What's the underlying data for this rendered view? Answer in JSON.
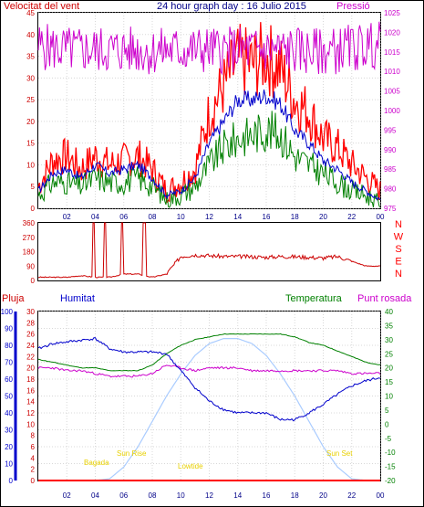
{
  "colors": {
    "red": "#ff0000",
    "darkred": "#cc0000",
    "blue": "#0000cc",
    "green": "#008000",
    "magenta": "#cc00cc",
    "grid": "#d8d8d8",
    "sun": "#aaccff",
    "yellow": "#e8d000"
  },
  "header": {
    "left": "Velocitat del vent",
    "title": "24 hour graph day : 16 Julio 2015",
    "right": "Pressió"
  },
  "legend": {
    "rain": "Pluja",
    "humidity": "Humitat",
    "temperature": "Temperatura",
    "dewpoint": "Punt rosada"
  },
  "time_labels": [
    "02",
    "04",
    "06",
    "08",
    "10",
    "12",
    "14",
    "16",
    "18",
    "20",
    "22",
    "00"
  ],
  "chart_data": [
    {
      "type": "line",
      "title": "Velocitat del vent / Pressió",
      "x_hours": [
        0,
        1,
        2,
        3,
        4,
        5,
        6,
        7,
        8,
        9,
        10,
        11,
        12,
        13,
        14,
        15,
        16,
        17,
        18,
        19,
        20,
        21,
        22,
        23,
        24
      ],
      "ylim_left": [
        0,
        45
      ],
      "left_ticks": [
        "0",
        "5",
        "10",
        "15",
        "20",
        "25",
        "30",
        "35",
        "40",
        "45"
      ],
      "ylim_right": [
        975,
        1025
      ],
      "right_ticks": [
        "975",
        "980",
        "985",
        "990",
        "995",
        "1000",
        "1005",
        "1010",
        "1015",
        "1020",
        "1025"
      ],
      "series": [
        {
          "name": "gust",
          "axis": "left",
          "values": [
            5,
            11,
            12,
            9,
            12,
            10,
            11,
            12,
            9,
            4,
            6,
            9,
            22,
            28,
            34,
            33,
            35,
            32,
            25,
            22,
            16,
            14,
            10,
            7,
            4
          ]
        },
        {
          "name": "speed",
          "axis": "left",
          "values": [
            4,
            8,
            9,
            7,
            10,
            8,
            9,
            10,
            7,
            3,
            4,
            7,
            15,
            20,
            25,
            25,
            26,
            24,
            18,
            15,
            11,
            9,
            6,
            4,
            2
          ]
        },
        {
          "name": "green",
          "axis": "left",
          "values": [
            3,
            6,
            6,
            5,
            7,
            6,
            6,
            7,
            5,
            2,
            3,
            5,
            10,
            14,
            16,
            17,
            18,
            17,
            12,
            10,
            8,
            6,
            4,
            3,
            1
          ]
        },
        {
          "name": "pressure",
          "axis": "right",
          "values": [
            1016.5,
            1016,
            1015.5,
            1015.5,
            1015.5,
            1015.5,
            1015.5,
            1015.5,
            1015,
            1015.5,
            1015.5,
            1015.5,
            1015.5,
            1015.5,
            1015.5,
            1015.5,
            1015.5,
            1015.5,
            1015.5,
            1015,
            1015,
            1015.5,
            1016,
            1016.5,
            1016.8
          ]
        }
      ]
    },
    {
      "type": "line",
      "title": "Direcció del vent",
      "ylim": [
        0,
        360
      ],
      "y_ticks": [
        "0",
        "90",
        "180",
        "270",
        "360"
      ],
      "compass": [
        "N",
        "W",
        "S",
        "E",
        "N"
      ],
      "series": [
        {
          "name": "direction",
          "values": [
            20,
            20,
            20,
            30,
            20,
            20,
            40,
            40,
            20,
            40,
            150,
            160,
            155,
            150,
            150,
            148,
            145,
            150,
            148,
            145,
            140,
            150,
            120,
            90,
            90
          ]
        }
      ]
    },
    {
      "type": "line",
      "title": "Pluja / Humitat / Temperatura / Punt rosada",
      "x_hours": [
        0,
        1,
        2,
        3,
        4,
        5,
        6,
        7,
        8,
        9,
        10,
        11,
        12,
        13,
        14,
        15,
        16,
        17,
        18,
        19,
        20,
        21,
        22,
        23,
        24
      ],
      "ylim_rain": [
        0,
        30
      ],
      "rain_ticks": [
        "0",
        "2",
        "4",
        "6",
        "8",
        "10",
        "12",
        "14",
        "16",
        "18",
        "20",
        "22",
        "24",
        "26",
        "28",
        "30"
      ],
      "ylim_humidity": [
        0,
        100
      ],
      "humidity_ticks": [
        "0",
        "10",
        "20",
        "30",
        "40",
        "50",
        "60",
        "70",
        "80",
        "90",
        "100"
      ],
      "ylim_temp": [
        -20,
        40
      ],
      "temp_ticks": [
        "-20",
        "-15",
        "-10",
        "-5",
        "0",
        "5",
        "10",
        "15",
        "20",
        "25",
        "30",
        "35",
        "40"
      ],
      "series": [
        {
          "name": "humidity",
          "axis": "humidity",
          "values": [
            78,
            81,
            82,
            83,
            84,
            78,
            76,
            76,
            76,
            75,
            65,
            55,
            47,
            42,
            40,
            40,
            40,
            36,
            36,
            40,
            45,
            51,
            56,
            59,
            61
          ]
        },
        {
          "name": "temperature",
          "axis": "temp",
          "values": [
            23,
            22,
            21,
            20,
            20,
            19,
            19,
            19,
            21,
            25,
            28,
            30,
            31,
            32,
            32,
            32,
            32,
            32,
            31,
            29,
            28,
            26,
            24,
            22,
            21
          ]
        },
        {
          "name": "dewpoint",
          "axis": "temp",
          "values": [
            20,
            20,
            19,
            19,
            18,
            17,
            17,
            17,
            18,
            21,
            20,
            19,
            20,
            20,
            20,
            19,
            19,
            19,
            19,
            19,
            19,
            19,
            18,
            18,
            18
          ]
        },
        {
          "name": "sun",
          "axis": "humidity",
          "values": [
            0,
            0,
            0,
            0,
            0,
            1,
            8,
            20,
            35,
            50,
            63,
            74,
            81,
            84,
            84,
            81,
            74,
            63,
            50,
            35,
            20,
            8,
            1,
            0,
            0
          ]
        },
        {
          "name": "rain",
          "axis": "rain",
          "values": [
            0,
            0,
            0,
            0,
            0,
            0,
            0,
            0,
            0,
            0,
            0,
            0,
            0,
            0,
            0,
            0,
            0,
            0,
            0,
            0,
            0,
            0,
            0,
            0,
            0
          ]
        }
      ],
      "annotations": [
        "Bagada",
        "Sun Rise",
        "Lowtide",
        "Sun Set"
      ]
    }
  ]
}
